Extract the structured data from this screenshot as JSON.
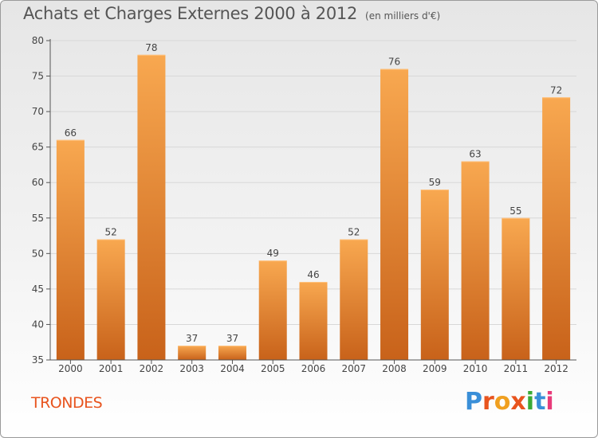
{
  "header": {
    "title": "Achats et Charges Externes 2000 à 2012",
    "unit": "(en milliers d'€)"
  },
  "footer": {
    "commune": "TRONDES",
    "logo_letters": [
      "P",
      "r",
      "o",
      "x",
      "i",
      "t",
      "i"
    ],
    "logo_colors": [
      "#3a8fd8",
      "#e8541e",
      "#f0a020",
      "#e8541e",
      "#3aaa35",
      "#3a8fd8",
      "#e83a7a"
    ]
  },
  "colors": {
    "bar_top": "#f8a850",
    "bar_bottom": "#c8621a",
    "axis": "#555555",
    "grid": "#d8d8d8"
  },
  "chart_data": {
    "type": "bar",
    "title": "Achats et Charges Externes 2000 à 2012",
    "subtitle": "(en milliers d'€)",
    "xlabel": "",
    "ylabel": "",
    "categories": [
      "2000",
      "2001",
      "2002",
      "2003",
      "2004",
      "2005",
      "2006",
      "2007",
      "2008",
      "2009",
      "2010",
      "2011",
      "2012"
    ],
    "values": [
      66,
      52,
      78,
      37,
      37,
      49,
      46,
      52,
      76,
      59,
      63,
      55,
      72
    ],
    "ylim": [
      35,
      80
    ],
    "yticks": [
      35,
      40,
      45,
      50,
      55,
      60,
      65,
      70,
      75,
      80
    ],
    "grid": true,
    "legend": "none"
  }
}
